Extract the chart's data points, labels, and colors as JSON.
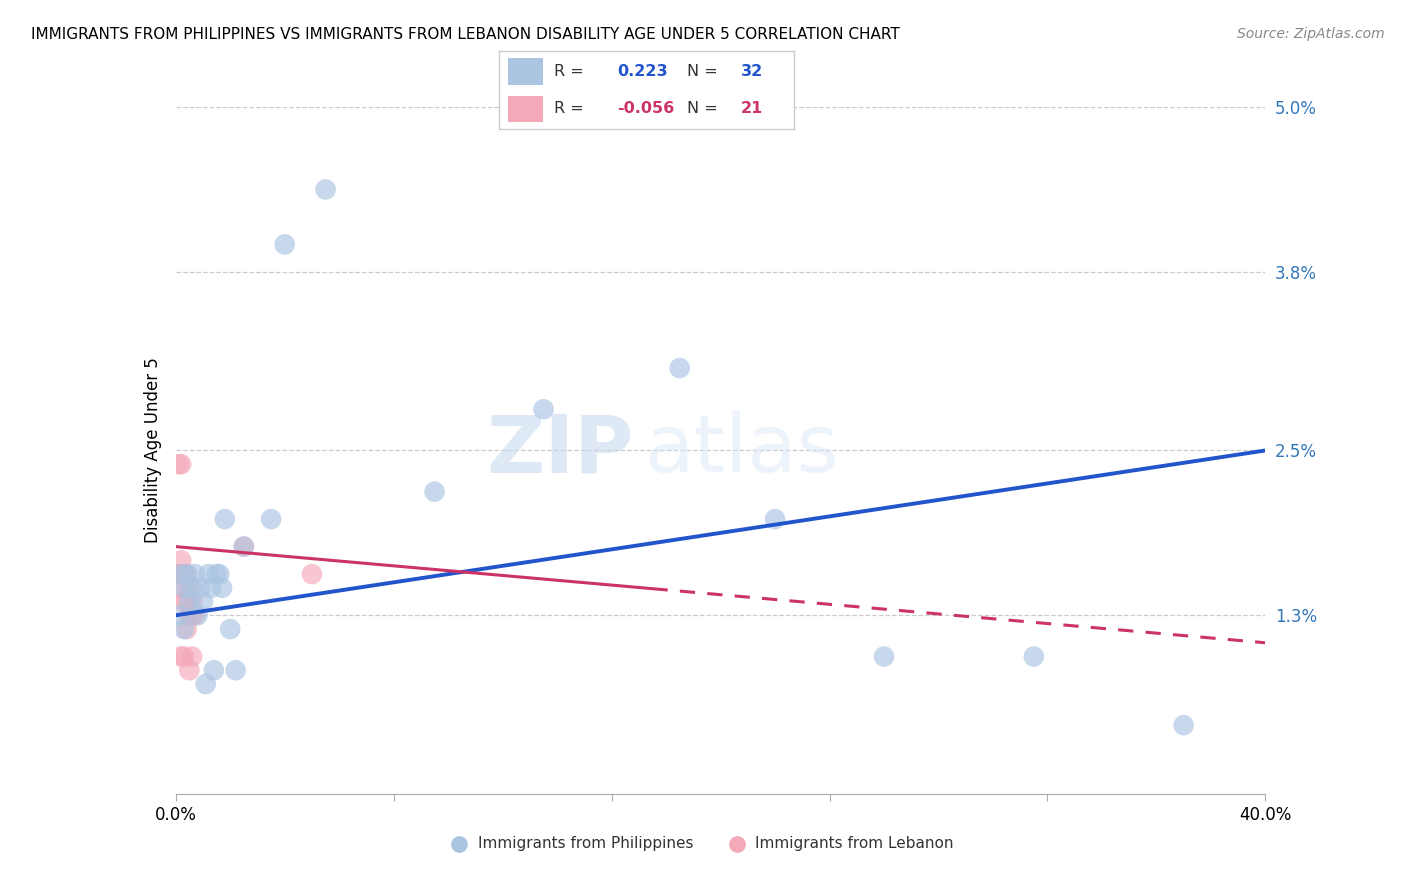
{
  "title": "IMMIGRANTS FROM PHILIPPINES VS IMMIGRANTS FROM LEBANON DISABILITY AGE UNDER 5 CORRELATION CHART",
  "source": "Source: ZipAtlas.com",
  "ylabel": "Disability Age Under 5",
  "xlim": [
    0.0,
    0.4
  ],
  "ylim": [
    0.0,
    0.05
  ],
  "xticks": [
    0.0,
    0.08,
    0.16,
    0.24,
    0.32,
    0.4
  ],
  "yticks": [
    0.0,
    0.013,
    0.025,
    0.038,
    0.05
  ],
  "ytick_labels": [
    "",
    "1.3%",
    "2.5%",
    "3.8%",
    "5.0%"
  ],
  "xtick_labels": [
    "0.0%",
    "",
    "",
    "",
    "",
    "40.0%"
  ],
  "philippines_R": 0.223,
  "philippines_N": 32,
  "lebanon_R": -0.056,
  "lebanon_N": 21,
  "philippines_color": "#aac4e2",
  "lebanon_color": "#f4a8b8",
  "philippines_line_color": "#2255cc",
  "lebanon_line_color": "#cc3366",
  "watermark_zip": "ZIP",
  "watermark_atlas": "atlas",
  "phil_line_x0": 0.0,
  "phil_line_y0": 0.013,
  "phil_line_x1": 0.4,
  "phil_line_y1": 0.025,
  "leb_line_x0": 0.0,
  "leb_line_y0": 0.018,
  "leb_line_x1": 0.4,
  "leb_line_y1": 0.011,
  "leb_line_solid_x1": 0.175,
  "philippines_x": [
    0.001,
    0.002,
    0.003,
    0.003,
    0.004,
    0.005,
    0.006,
    0.007,
    0.008,
    0.009,
    0.01,
    0.011,
    0.012,
    0.013,
    0.014,
    0.015,
    0.016,
    0.017,
    0.018,
    0.02,
    0.022,
    0.025,
    0.035,
    0.04,
    0.055,
    0.095,
    0.135,
    0.185,
    0.22,
    0.26,
    0.315,
    0.37
  ],
  "philippines_y": [
    0.013,
    0.016,
    0.015,
    0.012,
    0.016,
    0.014,
    0.015,
    0.016,
    0.013,
    0.015,
    0.014,
    0.008,
    0.016,
    0.015,
    0.009,
    0.016,
    0.016,
    0.015,
    0.02,
    0.012,
    0.009,
    0.018,
    0.02,
    0.04,
    0.044,
    0.022,
    0.028,
    0.031,
    0.02,
    0.01,
    0.01,
    0.005
  ],
  "lebanon_x": [
    0.001,
    0.001,
    0.001,
    0.002,
    0.002,
    0.002,
    0.003,
    0.003,
    0.003,
    0.004,
    0.004,
    0.004,
    0.005,
    0.005,
    0.005,
    0.006,
    0.006,
    0.006,
    0.007,
    0.025,
    0.05
  ],
  "lebanon_y": [
    0.016,
    0.015,
    0.024,
    0.017,
    0.024,
    0.01,
    0.016,
    0.014,
    0.01,
    0.016,
    0.014,
    0.012,
    0.015,
    0.013,
    0.009,
    0.014,
    0.013,
    0.01,
    0.013,
    0.018,
    0.016
  ]
}
